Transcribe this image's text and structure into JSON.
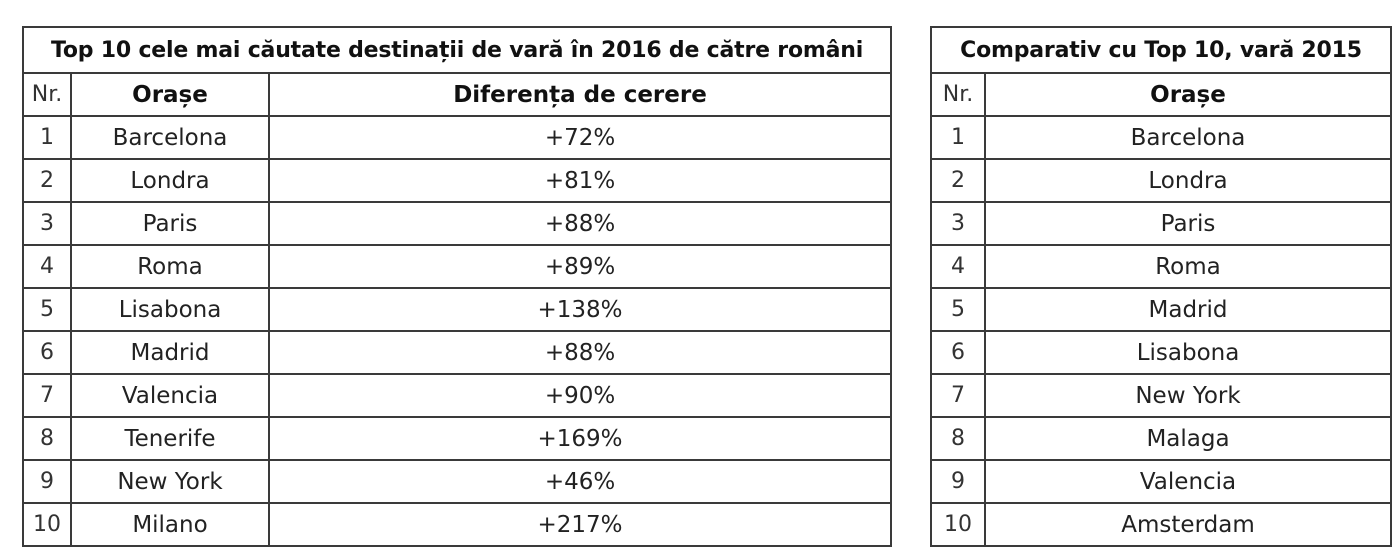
{
  "table_2016": {
    "title": "Top 10 cele mai căutate destinații de vară în 2016 de către români",
    "headers": {
      "nr": "Nr.",
      "city": "Orașe",
      "difference": "Diferența de cerere"
    },
    "rows": [
      {
        "nr": "1",
        "city": "Barcelona",
        "difference": "+72%"
      },
      {
        "nr": "2",
        "city": "Londra",
        "difference": "+81%"
      },
      {
        "nr": "3",
        "city": "Paris",
        "difference": "+88%"
      },
      {
        "nr": "4",
        "city": "Roma",
        "difference": "+89%"
      },
      {
        "nr": "5",
        "city": "Lisabona",
        "difference": "+138%"
      },
      {
        "nr": "6",
        "city": "Madrid",
        "difference": "+88%"
      },
      {
        "nr": "7",
        "city": "Valencia",
        "difference": "+90%"
      },
      {
        "nr": "8",
        "city": "Tenerife",
        "difference": "+169%"
      },
      {
        "nr": "9",
        "city": "New York",
        "difference": "+46%"
      },
      {
        "nr": "10",
        "city": "Milano",
        "difference": "+217%"
      }
    ]
  },
  "table_2015": {
    "title": "Comparativ cu Top 10, vară 2015",
    "headers": {
      "nr": "Nr.",
      "city": "Orașe"
    },
    "rows": [
      {
        "nr": "1",
        "city": "Barcelona"
      },
      {
        "nr": "2",
        "city": "Londra"
      },
      {
        "nr": "3",
        "city": "Paris"
      },
      {
        "nr": "4",
        "city": "Roma"
      },
      {
        "nr": "5",
        "city": "Madrid"
      },
      {
        "nr": "6",
        "city": "Lisabona"
      },
      {
        "nr": "7",
        "city": "New York"
      },
      {
        "nr": "8",
        "city": "Malaga"
      },
      {
        "nr": "9",
        "city": "Valencia"
      },
      {
        "nr": "10",
        "city": "Amsterdam"
      }
    ]
  }
}
